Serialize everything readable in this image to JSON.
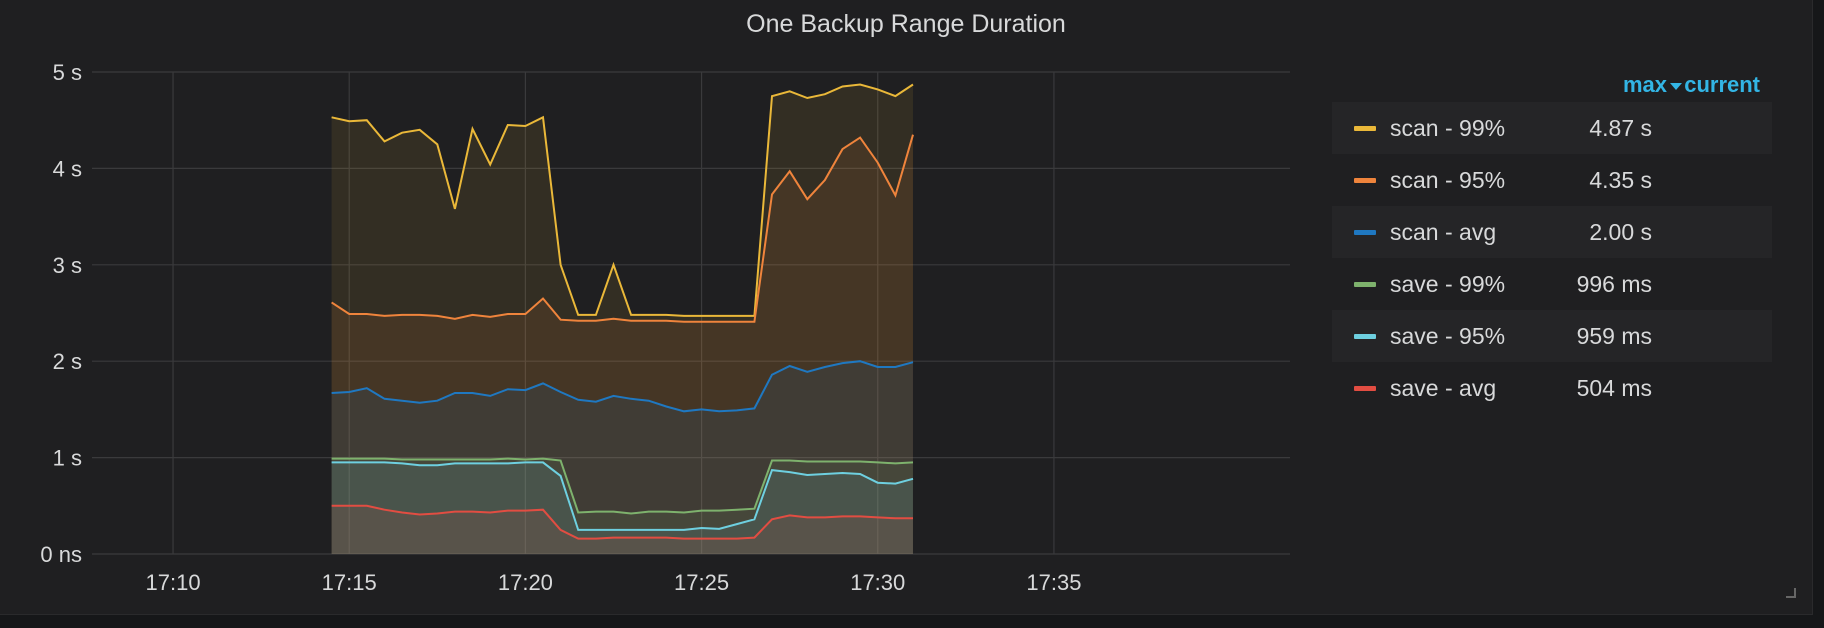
{
  "panel": {
    "title": "One Backup Range Duration"
  },
  "legend": {
    "headers": {
      "max": "max",
      "current": "current"
    },
    "items": [
      {
        "name": "scan - 99%",
        "value": "4.87 s",
        "color": "#eab839"
      },
      {
        "name": "scan - 95%",
        "value": "4.35 s",
        "color": "#ef843c"
      },
      {
        "name": "scan - avg",
        "value": "2.00 s",
        "color": "#1f78c1"
      },
      {
        "name": "save - 99%",
        "value": "996 ms",
        "color": "#7eb26d"
      },
      {
        "name": "save - 95%",
        "value": "959 ms",
        "color": "#6ed0e0"
      },
      {
        "name": "save - avg",
        "value": "504 ms",
        "color": "#e24d42"
      }
    ]
  },
  "chart_data": {
    "type": "area",
    "title": "One Backup Range Duration",
    "xlabel": "",
    "ylabel": "",
    "x_range_minutes": [
      1147.7,
      1181.7
    ],
    "y_range": [
      0,
      5
    ],
    "x_ticks": [
      {
        "minute": 1150,
        "label": "17:10"
      },
      {
        "minute": 1155,
        "label": "17:15"
      },
      {
        "minute": 1160,
        "label": "17:20"
      },
      {
        "minute": 1165,
        "label": "17:25"
      },
      {
        "minute": 1170,
        "label": "17:30"
      },
      {
        "minute": 1175,
        "label": "17:35"
      }
    ],
    "y_ticks": [
      {
        "value": 0,
        "label": "0 ns"
      },
      {
        "value": 1,
        "label": "1 s"
      },
      {
        "value": 2,
        "label": "2 s"
      },
      {
        "value": 3,
        "label": "3 s"
      },
      {
        "value": 4,
        "label": "4 s"
      },
      {
        "value": 5,
        "label": "5 s"
      }
    ],
    "grid": true,
    "legend_position": "right",
    "x_minutes": [
      1154.5,
      1155.0,
      1155.5,
      1156.0,
      1156.5,
      1157.0,
      1157.5,
      1158.0,
      1158.5,
      1159.0,
      1159.5,
      1160.0,
      1160.5,
      1161.0,
      1161.5,
      1162.0,
      1162.5,
      1163.0,
      1163.5,
      1164.0,
      1164.5,
      1165.0,
      1165.5,
      1166.0,
      1166.5,
      1167.0,
      1167.5,
      1168.0,
      1168.5,
      1169.0,
      1169.5,
      1170.0,
      1170.5,
      1171.0
    ],
    "series": [
      {
        "name": "scan - 99%",
        "color": "#eab839",
        "values": [
          4.53,
          4.49,
          4.5,
          4.28,
          4.37,
          4.4,
          4.25,
          3.58,
          4.41,
          4.04,
          4.45,
          4.44,
          4.53,
          3.0,
          2.48,
          2.48,
          3.0,
          2.48,
          2.48,
          2.48,
          2.47,
          2.47,
          2.47,
          2.47,
          2.47,
          4.75,
          4.8,
          4.73,
          4.77,
          4.85,
          4.87,
          4.82,
          4.75,
          4.87
        ]
      },
      {
        "name": "scan - 95%",
        "color": "#ef843c",
        "values": [
          2.61,
          2.49,
          2.49,
          2.47,
          2.48,
          2.48,
          2.47,
          2.44,
          2.48,
          2.46,
          2.49,
          2.49,
          2.65,
          2.43,
          2.42,
          2.42,
          2.44,
          2.42,
          2.42,
          2.42,
          2.41,
          2.41,
          2.41,
          2.41,
          2.41,
          3.73,
          3.97,
          3.68,
          3.88,
          4.2,
          4.32,
          4.06,
          3.72,
          4.35
        ]
      },
      {
        "name": "scan - avg",
        "color": "#1f78c1",
        "values": [
          1.67,
          1.68,
          1.72,
          1.61,
          1.59,
          1.57,
          1.59,
          1.67,
          1.67,
          1.64,
          1.71,
          1.7,
          1.77,
          1.68,
          1.6,
          1.58,
          1.64,
          1.61,
          1.59,
          1.53,
          1.48,
          1.5,
          1.48,
          1.49,
          1.51,
          1.86,
          1.95,
          1.89,
          1.94,
          1.98,
          2.0,
          1.94,
          1.94,
          1.99
        ]
      },
      {
        "name": "save - 99%",
        "color": "#7eb26d",
        "values": [
          0.99,
          0.99,
          0.99,
          0.99,
          0.98,
          0.98,
          0.98,
          0.98,
          0.98,
          0.98,
          0.99,
          0.98,
          0.99,
          0.97,
          0.43,
          0.44,
          0.44,
          0.42,
          0.44,
          0.44,
          0.43,
          0.45,
          0.45,
          0.46,
          0.47,
          0.97,
          0.97,
          0.96,
          0.96,
          0.96,
          0.96,
          0.95,
          0.94,
          0.95
        ]
      },
      {
        "name": "save - 95%",
        "color": "#6ed0e0",
        "values": [
          0.95,
          0.95,
          0.95,
          0.95,
          0.94,
          0.92,
          0.92,
          0.94,
          0.94,
          0.94,
          0.94,
          0.95,
          0.95,
          0.81,
          0.25,
          0.25,
          0.25,
          0.25,
          0.25,
          0.25,
          0.25,
          0.27,
          0.26,
          0.31,
          0.36,
          0.87,
          0.85,
          0.82,
          0.83,
          0.84,
          0.83,
          0.74,
          0.73,
          0.78
        ]
      },
      {
        "name": "save - avg",
        "color": "#e24d42",
        "values": [
          0.5,
          0.5,
          0.5,
          0.46,
          0.43,
          0.41,
          0.42,
          0.44,
          0.44,
          0.43,
          0.45,
          0.45,
          0.46,
          0.25,
          0.16,
          0.16,
          0.17,
          0.17,
          0.17,
          0.17,
          0.16,
          0.16,
          0.16,
          0.16,
          0.17,
          0.36,
          0.4,
          0.38,
          0.38,
          0.39,
          0.39,
          0.38,
          0.37,
          0.37
        ]
      }
    ]
  }
}
